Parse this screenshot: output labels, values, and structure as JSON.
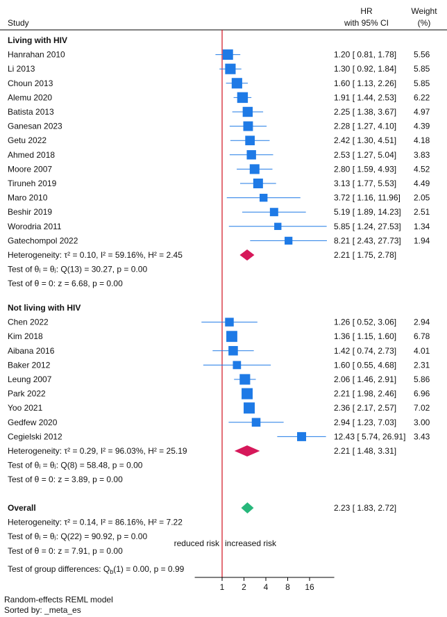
{
  "chart_data": {
    "type": "forest",
    "header": {
      "study": "Study",
      "hr_line1": "HR",
      "hr_line2": "with 95% CI",
      "weight_line1": "Weight",
      "weight_line2": "(%)"
    },
    "x_scale": "log2",
    "xlim": [
      0.42,
      35
    ],
    "reference_line": 1,
    "ticks": [
      1,
      2,
      4,
      8,
      16
    ],
    "tick_labels": [
      "1",
      "2",
      "4",
      "8",
      "16"
    ],
    "direction_labels": {
      "left": "reduced risk",
      "right": "increased risk"
    },
    "groups": [
      {
        "title": "Living with HIV",
        "studies": [
          {
            "name": "Hanrahan 2010",
            "hr": 1.2,
            "lo": 0.81,
            "hi": 1.78,
            "ci_text": "1.20 [ 0.81,   1.78]",
            "weight": "5.56"
          },
          {
            "name": "Li 2013",
            "hr": 1.3,
            "lo": 0.92,
            "hi": 1.84,
            "ci_text": "1.30 [ 0.92,   1.84]",
            "weight": "5.85"
          },
          {
            "name": "Choun 2013",
            "hr": 1.6,
            "lo": 1.13,
            "hi": 2.26,
            "ci_text": "1.60 [ 1.13,   2.26]",
            "weight": "5.85"
          },
          {
            "name": "Alemu 2020",
            "hr": 1.91,
            "lo": 1.44,
            "hi": 2.53,
            "ci_text": "1.91 [ 1.44,   2.53]",
            "weight": "6.22"
          },
          {
            "name": "Batista 2013",
            "hr": 2.25,
            "lo": 1.38,
            "hi": 3.67,
            "ci_text": "2.25 [ 1.38,   3.67]",
            "weight": "4.97"
          },
          {
            "name": "Ganesan 2023",
            "hr": 2.28,
            "lo": 1.27,
            "hi": 4.1,
            "ci_text": "2.28 [ 1.27,   4.10]",
            "weight": "4.39"
          },
          {
            "name": "Getu 2022",
            "hr": 2.42,
            "lo": 1.3,
            "hi": 4.51,
            "ci_text": "2.42 [ 1.30,   4.51]",
            "weight": "4.18"
          },
          {
            "name": "Ahmed 2018",
            "hr": 2.53,
            "lo": 1.27,
            "hi": 5.04,
            "ci_text": "2.53 [ 1.27,   5.04]",
            "weight": "3.83"
          },
          {
            "name": "Moore 2007",
            "hr": 2.8,
            "lo": 1.59,
            "hi": 4.93,
            "ci_text": "2.80 [ 1.59,   4.93]",
            "weight": "4.52"
          },
          {
            "name": "Tiruneh 2019",
            "hr": 3.13,
            "lo": 1.77,
            "hi": 5.53,
            "ci_text": "3.13 [ 1.77,   5.53]",
            "weight": "4.49"
          },
          {
            "name": "Maro 2010",
            "hr": 3.72,
            "lo": 1.16,
            "hi": 11.96,
            "ci_text": "3.72 [ 1.16,  11.96]",
            "weight": "2.05"
          },
          {
            "name": "Beshir 2019",
            "hr": 5.19,
            "lo": 1.89,
            "hi": 14.23,
            "ci_text": "5.19 [ 1.89,  14.23]",
            "weight": "2.51"
          },
          {
            "name": "Worodria 2011",
            "hr": 5.85,
            "lo": 1.24,
            "hi": 27.53,
            "ci_text": "5.85 [ 1.24,  27.53]",
            "weight": "1.34"
          },
          {
            "name": "Gatechompol 2022",
            "hr": 8.21,
            "lo": 2.43,
            "hi": 27.73,
            "ci_text": "8.21 [ 2.43,  27.73]",
            "weight": "1.94"
          }
        ],
        "pooled": {
          "hr": 2.21,
          "lo": 1.75,
          "hi": 2.78,
          "ci_text": "2.21 [ 1.75,   2.78]",
          "color": "#d6185a"
        },
        "stats": [
          "Heterogeneity: τ² = 0.10, I² = 59.16%, H² = 2.45",
          "Test of θᵢ = θⱼ: Q(13) = 30.27, p = 0.00",
          "Test of θ = 0: z = 6.68, p = 0.00"
        ]
      },
      {
        "title": "Not living with HIV",
        "studies": [
          {
            "name": "Chen 2022",
            "hr": 1.26,
            "lo": 0.52,
            "hi": 3.06,
            "ci_text": "1.26 [ 0.52,   3.06]",
            "weight": "2.94"
          },
          {
            "name": "Kim 2018",
            "hr": 1.36,
            "lo": 1.15,
            "hi": 1.6,
            "ci_text": "1.36 [ 1.15,   1.60]",
            "weight": "6.78"
          },
          {
            "name": "Aibana 2016",
            "hr": 1.42,
            "lo": 0.74,
            "hi": 2.73,
            "ci_text": "1.42 [ 0.74,   2.73]",
            "weight": "4.01"
          },
          {
            "name": "Baker 2012",
            "hr": 1.6,
            "lo": 0.55,
            "hi": 4.68,
            "ci_text": "1.60 [ 0.55,   4.68]",
            "weight": "2.31"
          },
          {
            "name": "Leung 2007",
            "hr": 2.06,
            "lo": 1.46,
            "hi": 2.91,
            "ci_text": "2.06 [ 1.46,   2.91]",
            "weight": "5.86"
          },
          {
            "name": "Park 2022",
            "hr": 2.21,
            "lo": 1.98,
            "hi": 2.46,
            "ci_text": "2.21 [ 1.98,   2.46]",
            "weight": "6.96"
          },
          {
            "name": "Yoo 2021",
            "hr": 2.36,
            "lo": 2.17,
            "hi": 2.57,
            "ci_text": "2.36 [ 2.17,   2.57]",
            "weight": "7.02"
          },
          {
            "name": "Gedfew 2020",
            "hr": 2.94,
            "lo": 1.23,
            "hi": 7.03,
            "ci_text": "2.94 [ 1.23,   7.03]",
            "weight": "3.00"
          },
          {
            "name": "Cegielski 2012",
            "hr": 12.43,
            "lo": 5.74,
            "hi": 26.91,
            "ci_text": "12.43 [ 5.74,  26.91]",
            "weight": "3.43"
          }
        ],
        "pooled": {
          "hr": 2.21,
          "lo": 1.48,
          "hi": 3.31,
          "ci_text": "2.21 [ 1.48,   3.31]",
          "color": "#d6185a"
        },
        "stats": [
          "Heterogeneity: τ² = 0.29, I² = 96.03%, H² = 25.19",
          "Test of θᵢ = θⱼ: Q(8) = 58.48, p = 0.00",
          "Test of θ = 0: z = 3.89, p = 0.00"
        ]
      }
    ],
    "overall": {
      "title": "Overall",
      "hr": 2.23,
      "lo": 1.83,
      "hi": 2.72,
      "ci_text": "2.23 [ 1.83,   2.72]",
      "color": "#27b77b",
      "stats": [
        "Heterogeneity: τ² = 0.14, I² = 86.16%, H² = 7.22",
        "Test of θᵢ = θⱼ: Q(22) = 90.92, p = 0.00",
        "Test of θ = 0: z = 7.91, p = 0.00"
      ]
    },
    "group_difference_test": "Test of group differences: Q_b(1) = 0.00, p = 0.99",
    "colors": {
      "marker": "#1e7ae6",
      "reference_line": "#d0101e",
      "ci_line": "#1e7ae6"
    }
  },
  "footnotes": {
    "model": "Random-effects REML model",
    "sort": "Sorted by: _meta_es"
  }
}
